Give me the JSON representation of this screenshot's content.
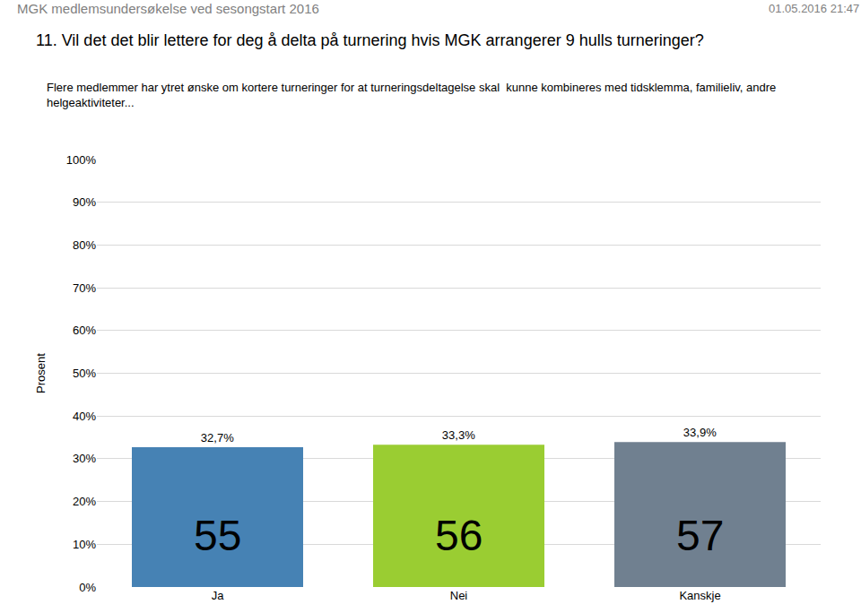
{
  "chart_data": {
    "type": "bar",
    "header": "MGK medlemsundersøkelse ved sesongstart 2016",
    "timestamp": "01.05.2016 21:47",
    "title": "11. Vil det det blir lettere for deg å delta på turnering hvis MGK arrangerer 9 hulls turneringer?",
    "subtitle": "Flere medlemmer har ytret ønske om kortere turneringer for at turneringsdeltagelse skal  kunne kombineres med tidsklemma, familieliv, andre helgeaktiviteter...",
    "ylabel": "Prosent",
    "categories": [
      "Ja",
      "Nei",
      "Kanskje"
    ],
    "values": [
      32.7,
      33.3,
      33.9
    ],
    "value_labels": [
      "32,7%",
      "33,3%",
      "33,9%"
    ],
    "counts": [
      55,
      56,
      57
    ],
    "colors": [
      "#4682b4",
      "#9acd32",
      "#708090"
    ],
    "data_labels": true,
    "ylim": [
      0,
      100
    ],
    "yticks": [
      {
        "value": 0,
        "label": "0%"
      },
      {
        "value": 10,
        "label": "10%"
      },
      {
        "value": 20,
        "label": "20%"
      },
      {
        "value": 30,
        "label": "30%"
      },
      {
        "value": 40,
        "label": "40%"
      },
      {
        "value": 50,
        "label": "50%"
      },
      {
        "value": 60,
        "label": "60%"
      },
      {
        "value": 70,
        "label": "70%"
      },
      {
        "value": 80,
        "label": "80%"
      },
      {
        "value": 90,
        "label": "90%"
      },
      {
        "value": 100,
        "label": "100%"
      }
    ],
    "grid": true
  }
}
